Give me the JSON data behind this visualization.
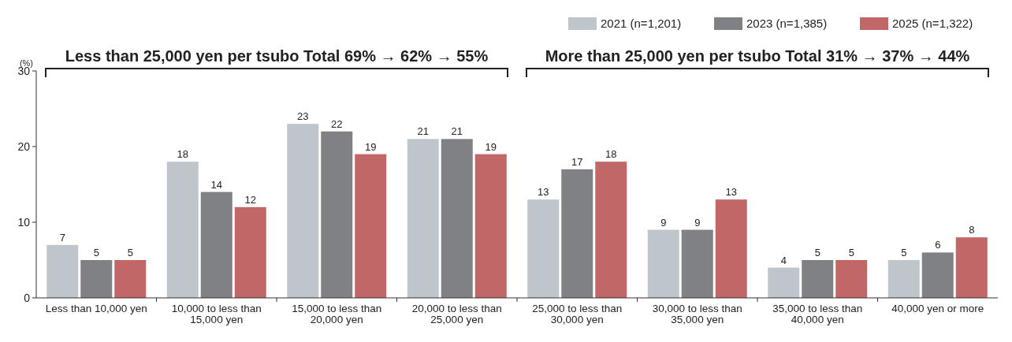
{
  "chart_data": {
    "type": "bar",
    "ylabel": "(%)",
    "categories": [
      "Less than 10,000 yen",
      "10,000 to less than 15,000 yen",
      "15,000 to less than 20,000 yen",
      "20,000 to less than 25,000 yen",
      "25,000 to less than 30,000 yen",
      "30,000 to less than 35,000 yen",
      "35,000 to less than 40,000 yen",
      "40,000 yen or more"
    ],
    "series": [
      {
        "name": "2021 (n=1,201)",
        "color": "#bfc6cb",
        "values": [
          7,
          18,
          23,
          21,
          13,
          9,
          4,
          5
        ]
      },
      {
        "name": "2023 (n=1,385)",
        "color": "#808185",
        "values": [
          5,
          14,
          22,
          21,
          17,
          9,
          5,
          6
        ]
      },
      {
        "name": "2025 (n=1,322)",
        "color": "#c26767",
        "values": [
          5,
          12,
          19,
          19,
          18,
          13,
          5,
          8
        ]
      }
    ],
    "ylim": [
      0,
      30
    ],
    "yticks": [
      0,
      10,
      20,
      30
    ],
    "data_labels": true,
    "legend": "top right",
    "grid": false,
    "annotations": [
      "Less than 25,000 yen per tsubo Total 69% → 62% → 55%",
      "More than 25,000 yen per tsubo Total 31% → 37% → 44%"
    ]
  }
}
